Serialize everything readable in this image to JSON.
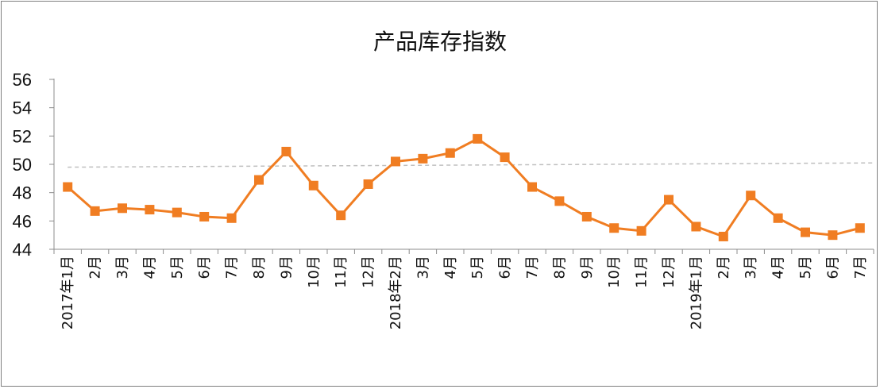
{
  "chart_data": {
    "type": "line",
    "title": "产品库存指数",
    "xlabel": "",
    "ylabel": "",
    "ylim": [
      44,
      56
    ],
    "yticks": [
      44,
      46,
      48,
      50,
      52,
      54,
      56
    ],
    "categories": [
      "2017年1月",
      "2月",
      "3月",
      "4月",
      "5月",
      "6月",
      "7月",
      "8月",
      "9月",
      "10月",
      "11月",
      "12月",
      "2018年2月",
      "3月",
      "4月",
      "5月",
      "6月",
      "7月",
      "8月",
      "9月",
      "10月",
      "11月",
      "12月",
      "2019年1月",
      "2月",
      "3月",
      "4月",
      "5月",
      "6月",
      "7月"
    ],
    "series": [
      {
        "color": "#f07d22",
        "marker": "square",
        "values": [
          48.4,
          46.7,
          46.9,
          46.8,
          46.6,
          46.3,
          46.2,
          48.9,
          50.9,
          48.5,
          46.4,
          48.6,
          50.2,
          50.4,
          50.8,
          51.8,
          50.5,
          48.4,
          47.4,
          46.3,
          45.5,
          45.3,
          47.5,
          45.6,
          44.9,
          47.8,
          46.2,
          45.2,
          45.0,
          45.5
        ]
      }
    ],
    "reference_line": {
      "color": "#bfbfbf",
      "style": "dashed",
      "start": 49.8,
      "end": 50.1
    },
    "grid": false,
    "legend": "none"
  }
}
